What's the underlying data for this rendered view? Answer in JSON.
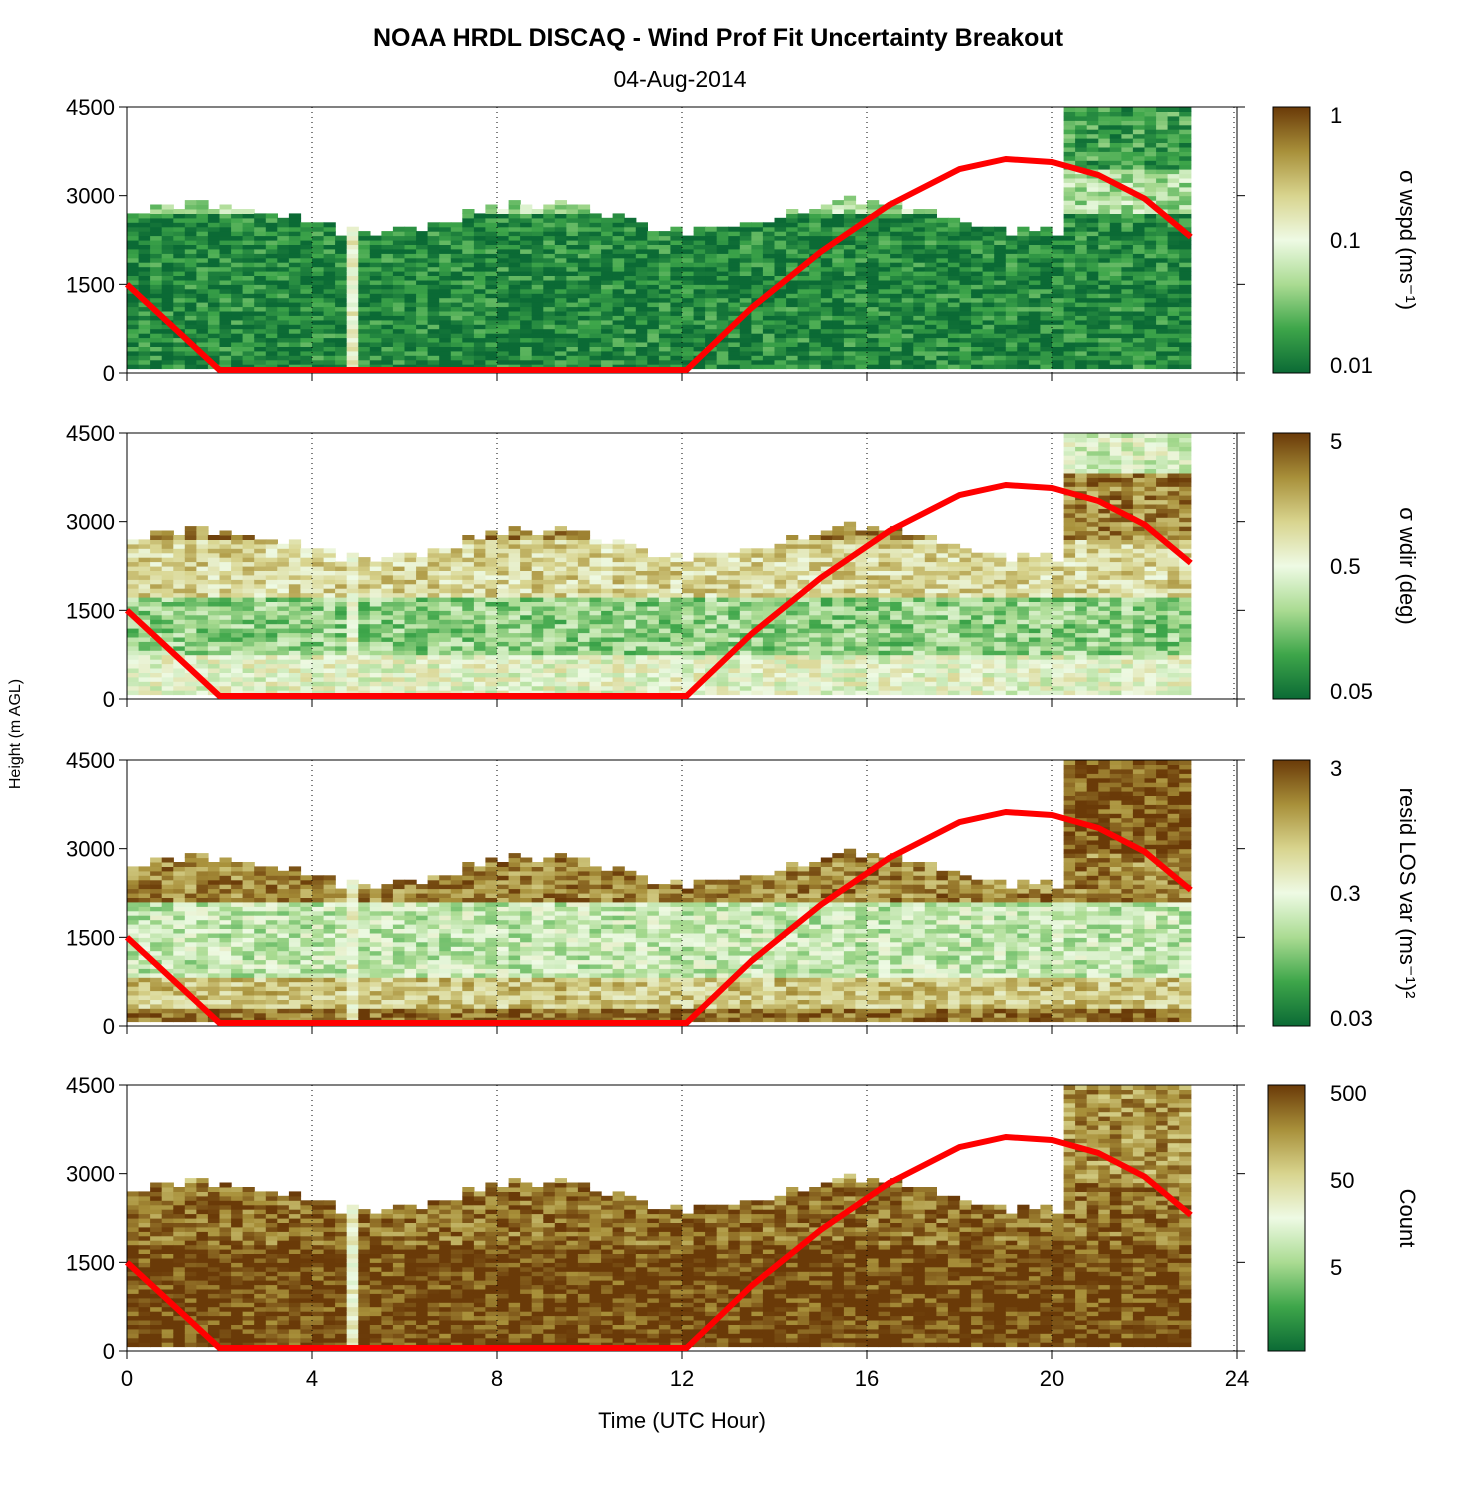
{
  "chart_data": {
    "type": "heatmap",
    "title": "NOAA HRDL DISCAQ - Wind Prof Fit Uncertainty Breakout",
    "subtitle": "04-Aug-2014",
    "xlabel": "Time (UTC Hour)",
    "ylabel": "Height (m AGL)",
    "xlim": [
      0,
      24
    ],
    "ylim": [
      0,
      4500
    ],
    "xticks": [
      "0",
      "4",
      "8",
      "12",
      "16",
      "20",
      "24"
    ],
    "yticks": [
      "0",
      "1500",
      "3000",
      "4500"
    ],
    "vertical_dotted_grid_hours": [
      4,
      8,
      12,
      16,
      20
    ],
    "data_time_range_hours": [
      0,
      23
    ],
    "colormap": [
      "#0b6a35",
      "#3ea64a",
      "#aadb92",
      "#eefae4",
      "#d8d48e",
      "#a8903a",
      "#6a3a08"
    ],
    "line_series": {
      "color": "#ff0000",
      "points": [
        [
          0,
          1500
        ],
        [
          2,
          50
        ],
        [
          12.1,
          50
        ],
        [
          13.5,
          1100
        ],
        [
          15,
          2050
        ],
        [
          16.5,
          2850
        ],
        [
          18,
          3450
        ],
        [
          19,
          3620
        ],
        [
          20,
          3570
        ],
        [
          21,
          3350
        ],
        [
          22,
          2950
        ],
        [
          23,
          2300
        ]
      ]
    },
    "panels": [
      {
        "colorbar_label": "σ wspd (ms⁻¹)",
        "colorbar_ticks": [
          "1",
          "0.1",
          "0.01"
        ],
        "scale": "log",
        "range": [
          0.01,
          1
        ],
        "rows": [
          {
            "h_from": 0,
            "h_to": 2700,
            "level": 0.08
          },
          {
            "h_from": 2700,
            "h_to": 3400,
            "level": 0.35
          },
          {
            "h_from": 3400,
            "h_to": 4500,
            "level": 0.15
          }
        ]
      },
      {
        "colorbar_label": "σ wdir (deg)",
        "colorbar_ticks": [
          "5",
          "0.5",
          "0.05"
        ],
        "scale": "log",
        "range": [
          0.05,
          5
        ],
        "rows": [
          {
            "h_from": 0,
            "h_to": 700,
            "level": 0.5
          },
          {
            "h_from": 700,
            "h_to": 1700,
            "level": 0.3
          },
          {
            "h_from": 1700,
            "h_to": 2700,
            "level": 0.65
          },
          {
            "h_from": 2700,
            "h_to": 3800,
            "level": 0.85
          },
          {
            "h_from": 3800,
            "h_to": 4500,
            "level": 0.45
          }
        ]
      },
      {
        "colorbar_label": "resid LOS var (ms⁻¹)²",
        "colorbar_ticks": [
          "3",
          "0.3",
          "0.03"
        ],
        "scale": "log",
        "range": [
          0.03,
          3
        ],
        "rows": [
          {
            "h_from": 0,
            "h_to": 250,
            "level": 0.9
          },
          {
            "h_from": 250,
            "h_to": 800,
            "level": 0.7
          },
          {
            "h_from": 800,
            "h_to": 2100,
            "level": 0.4
          },
          {
            "h_from": 2100,
            "h_to": 2900,
            "level": 0.85
          },
          {
            "h_from": 2900,
            "h_to": 4500,
            "level": 0.95
          }
        ]
      },
      {
        "colorbar_label": "Count",
        "colorbar_ticks": [
          "500",
          "50",
          "5"
        ],
        "scale": "log",
        "range": [
          1,
          700
        ],
        "rows": [
          {
            "h_from": 0,
            "h_to": 1800,
            "level": 0.98
          },
          {
            "h_from": 1800,
            "h_to": 2800,
            "level": 0.9
          },
          {
            "h_from": 2800,
            "h_to": 4500,
            "level": 0.82
          }
        ]
      }
    ]
  }
}
